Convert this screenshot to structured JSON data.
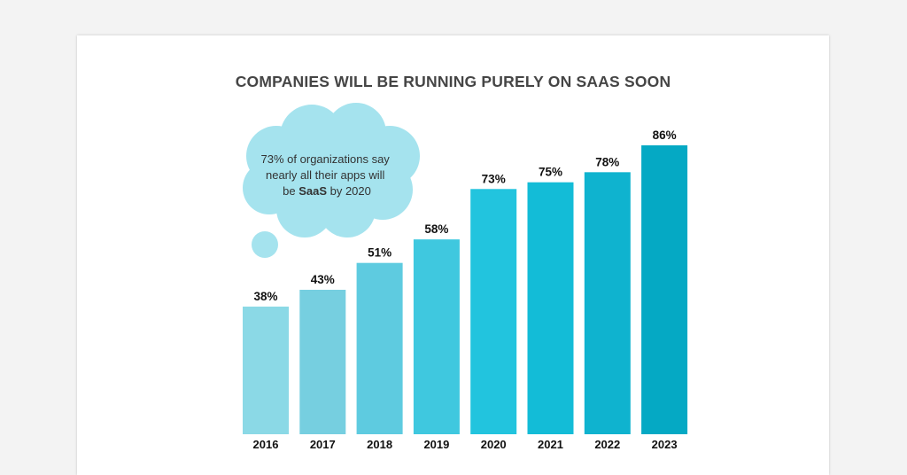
{
  "chart_data": {
    "type": "bar",
    "title": "COMPANIES WILL BE RUNNING PURELY ON SAAS SOON",
    "categories": [
      "2016",
      "2017",
      "2018",
      "2019",
      "2020",
      "2021",
      "2022",
      "2023"
    ],
    "values": [
      38,
      43,
      51,
      58,
      73,
      75,
      78,
      86
    ],
    "value_labels": [
      "38%",
      "43%",
      "51%",
      "58%",
      "73%",
      "75%",
      "78%",
      "86%"
    ],
    "unit": "%",
    "ylim": [
      0,
      86
    ],
    "grid": false,
    "bar_colors": [
      "#8bd9e6",
      "#76cfe0",
      "#5ecbe0",
      "#3fc8df",
      "#22c4de",
      "#13bcd7",
      "#0fb3cf",
      "#05a9c4"
    ],
    "annotation": {
      "lines": [
        "73% of organizations say",
        "nearly all their apps will"
      ],
      "last_line": {
        "pre": "be ",
        "bold": "SaaS",
        "post": " by 2020"
      },
      "color": "#a5e3ee"
    }
  }
}
